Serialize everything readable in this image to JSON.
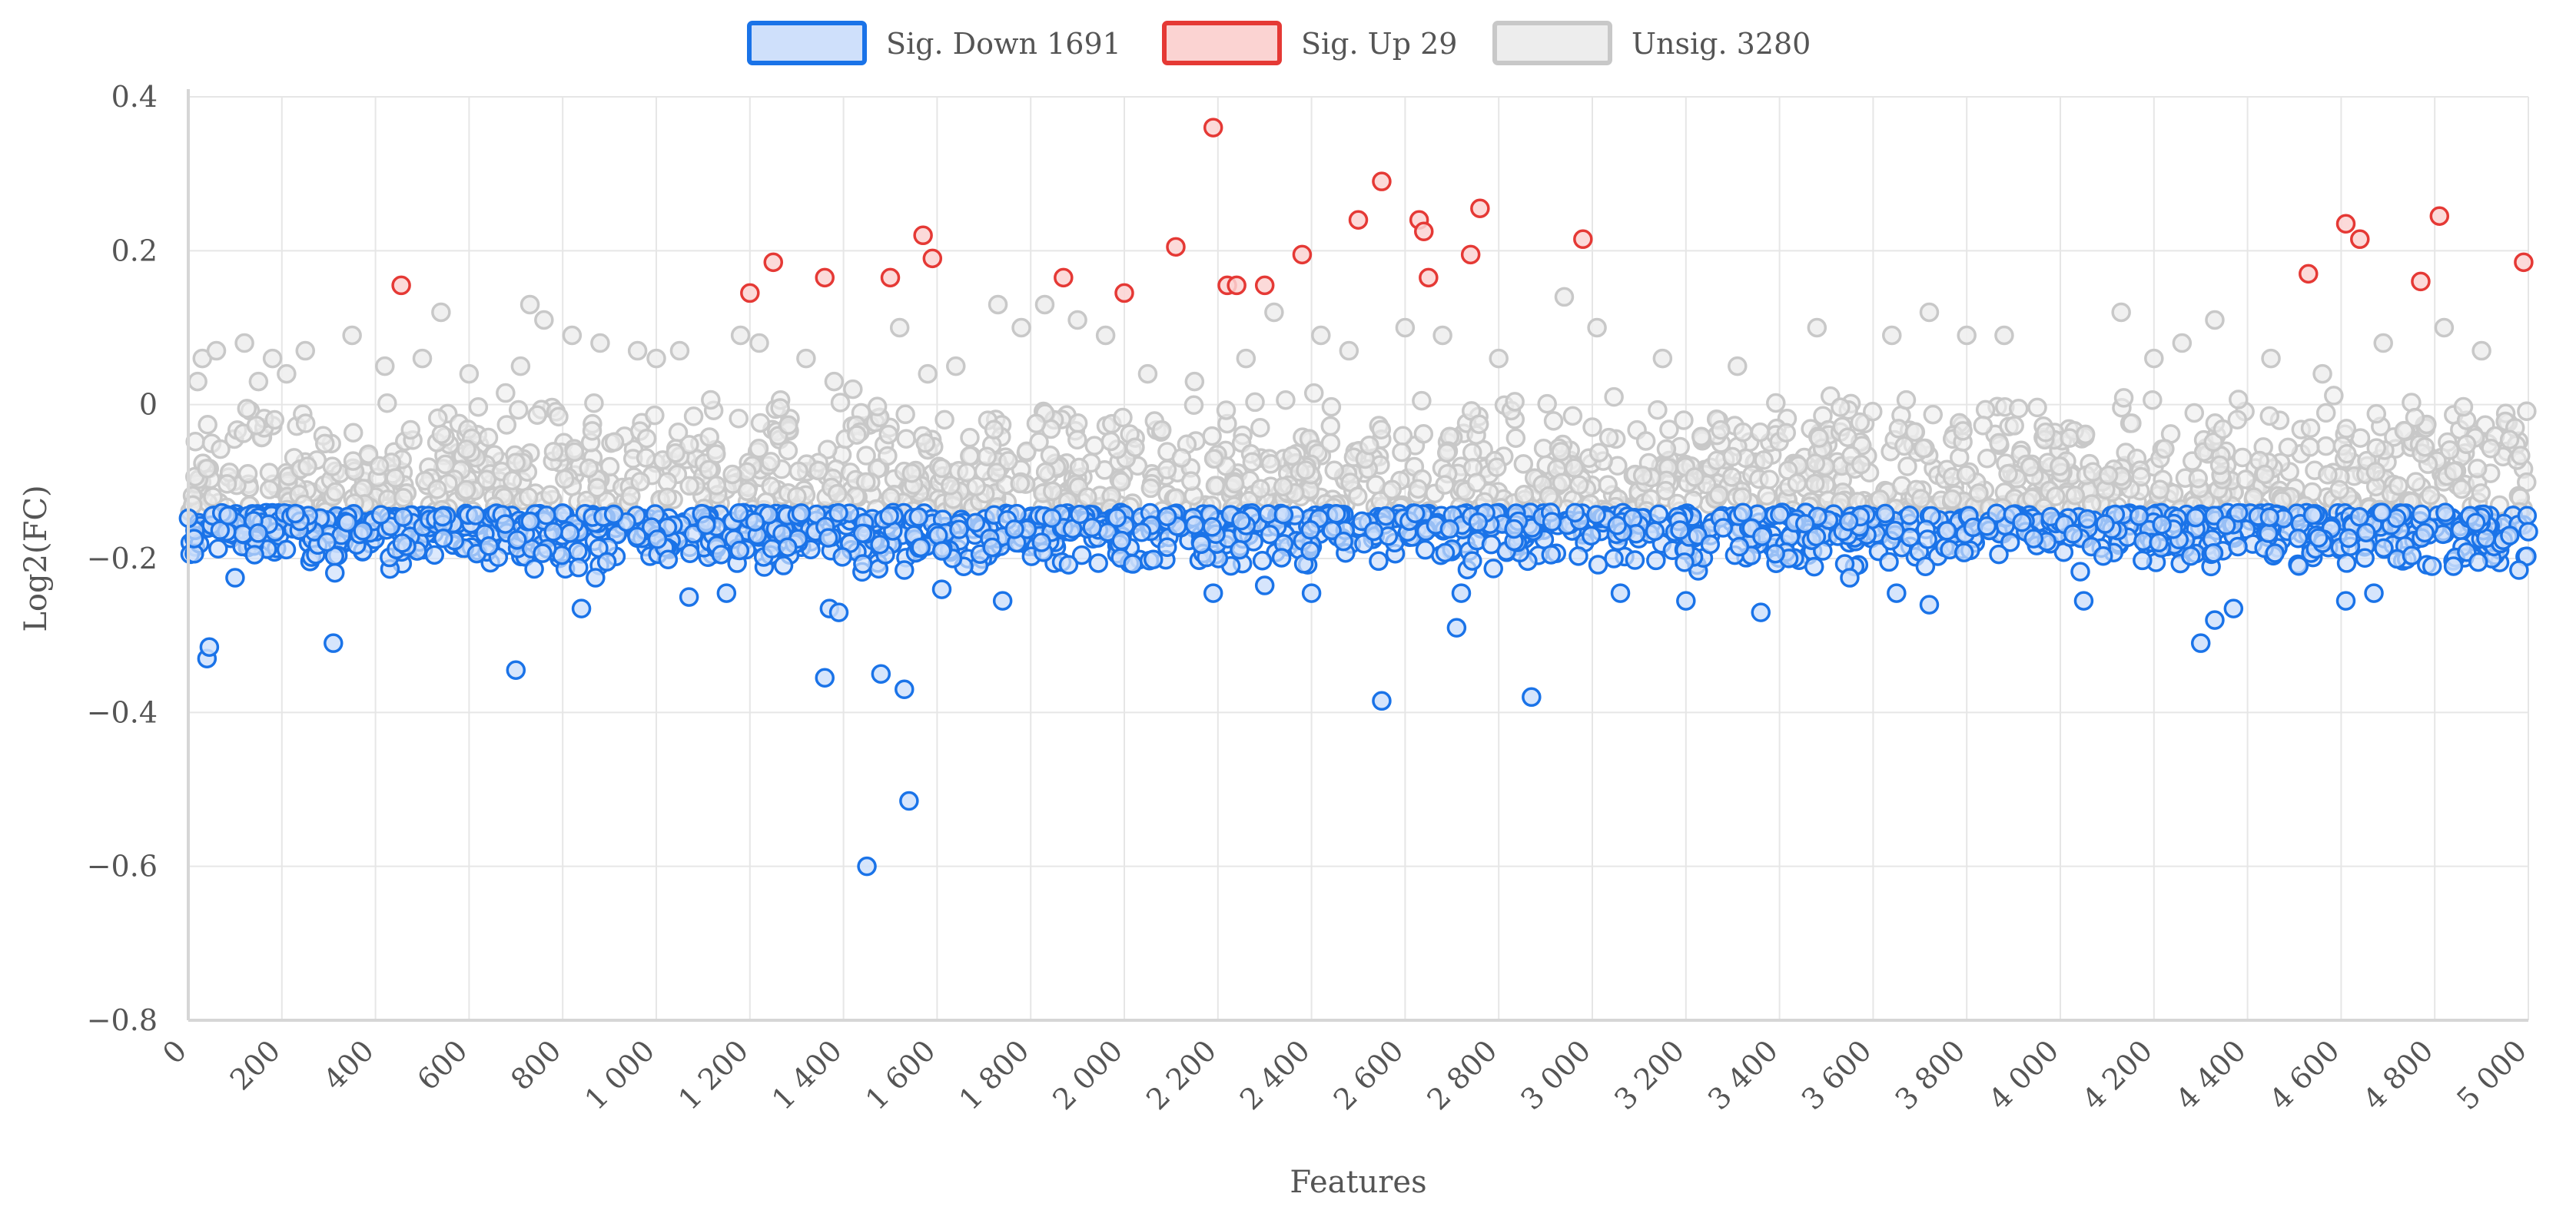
{
  "chart_data": {
    "type": "scatter",
    "title": "",
    "xlabel": "Features",
    "ylabel": "Log2(FC)",
    "xlim": [
      0,
      5000
    ],
    "ylim": [
      -0.8,
      0.4
    ],
    "x_ticks": [
      0,
      200,
      400,
      600,
      800,
      1000,
      1200,
      1400,
      1600,
      1800,
      2000,
      2200,
      2400,
      2600,
      2800,
      3000,
      3200,
      3400,
      3600,
      3800,
      4000,
      4200,
      4400,
      4600,
      4800,
      5000
    ],
    "x_tick_labels": [
      "0",
      "200",
      "400",
      "600",
      "800",
      "1 000",
      "1 200",
      "1 400",
      "1 600",
      "1 800",
      "2 000",
      "2 200",
      "2 400",
      "2 600",
      "2 800",
      "3 000",
      "3 200",
      "3 400",
      "3 600",
      "3 800",
      "4 000",
      "4 200",
      "4 400",
      "4 600",
      "4 800",
      "5 000"
    ],
    "y_ticks": [
      0.4,
      0.2,
      0,
      -0.2,
      -0.4,
      -0.6,
      -0.8
    ],
    "y_tick_labels": [
      "0.4",
      "0.2",
      "0",
      "−0.2",
      "−0.4",
      "−0.6",
      "−0.8"
    ],
    "grid": true,
    "legend_position": "top-center",
    "series": [
      {
        "name": "Sig. Down 1691",
        "color": "#1a73e8",
        "fill": "#cfe0fb",
        "count": 1691,
        "x": [
          40,
          45,
          100,
          310,
          700,
          840,
          870,
          1070,
          1150,
          1360,
          1370,
          1390,
          1450,
          1480,
          1530,
          1540,
          1530,
          1610,
          1740,
          2190,
          2300,
          2400,
          2550,
          2710,
          2720,
          2870,
          3060,
          3200,
          3360,
          3550,
          3650,
          3720,
          4050,
          4300,
          4330,
          4370,
          4610,
          4670,
          4840,
          4980,
          5000
        ],
        "y": [
          -0.33,
          -0.315,
          -0.225,
          -0.31,
          -0.345,
          -0.265,
          -0.225,
          -0.25,
          -0.245,
          -0.355,
          -0.265,
          -0.27,
          -0.6,
          -0.35,
          -0.37,
          -0.515,
          -0.215,
          -0.24,
          -0.255,
          -0.245,
          -0.235,
          -0.245,
          -0.385,
          -0.29,
          -0.245,
          -0.38,
          -0.245,
          -0.255,
          -0.27,
          -0.225,
          -0.245,
          -0.26,
          -0.255,
          -0.31,
          -0.28,
          -0.265,
          -0.255,
          -0.245,
          -0.21,
          -0.215,
          -0.165
        ]
      },
      {
        "name": "Sig. Up 29",
        "color": "#e53935",
        "fill": "#fbd3d2",
        "count": 29,
        "x": [
          455,
          1200,
          1250,
          1360,
          1500,
          1570,
          1590,
          1870,
          2000,
          2110,
          2190,
          2220,
          2240,
          2300,
          2380,
          2500,
          2550,
          2630,
          2640,
          2650,
          2740,
          2760,
          2980,
          4530,
          4610,
          4640,
          4770,
          4810,
          4990
        ],
        "y": [
          0.155,
          0.145,
          0.185,
          0.165,
          0.165,
          0.22,
          0.19,
          0.165,
          0.145,
          0.205,
          0.36,
          0.155,
          0.155,
          0.155,
          0.195,
          0.24,
          0.29,
          0.24,
          0.225,
          0.165,
          0.195,
          0.255,
          0.215,
          0.17,
          0.235,
          0.215,
          0.16,
          0.245,
          0.185
        ]
      },
      {
        "name": "Unsig. 3280",
        "color": "#c8c8c8",
        "fill": "#ededed",
        "count": 3280,
        "x": [
          20,
          30,
          60,
          120,
          150,
          180,
          210,
          250,
          350,
          420,
          500,
          540,
          600,
          710,
          730,
          760,
          820,
          880,
          960,
          1000,
          1050,
          1180,
          1220,
          1320,
          1380,
          1420,
          1520,
          1580,
          1640,
          1730,
          1780,
          1830,
          1900,
          1960,
          2050,
          2150,
          2260,
          2320,
          2420,
          2480,
          2600,
          2680,
          2800,
          2940,
          3010,
          3150,
          3310,
          3480,
          3640,
          3720,
          3800,
          3880,
          4130,
          4200,
          4260,
          4330,
          4450,
          4560,
          4690,
          4820,
          4900
        ],
        "y": [
          0.03,
          0.06,
          0.07,
          0.08,
          0.03,
          0.06,
          0.04,
          0.07,
          0.09,
          0.05,
          0.06,
          0.12,
          0.04,
          0.05,
          0.13,
          0.11,
          0.09,
          0.08,
          0.07,
          0.06,
          0.07,
          0.09,
          0.08,
          0.06,
          0.03,
          0.02,
          0.1,
          0.04,
          0.05,
          0.13,
          0.1,
          0.13,
          0.11,
          0.09,
          0.04,
          0.03,
          0.06,
          0.12,
          0.09,
          0.07,
          0.1,
          0.09,
          0.06,
          0.14,
          0.1,
          0.06,
          0.05,
          0.1,
          0.09,
          0.12,
          0.09,
          0.09,
          0.12,
          0.06,
          0.08,
          0.11,
          0.06,
          0.04,
          0.08,
          0.1,
          0.07
        ]
      }
    ],
    "dense_band": {
      "unsig_y_range": [
        -0.14,
        0.02
      ],
      "down_y_range": [
        -0.22,
        -0.14
      ]
    }
  }
}
